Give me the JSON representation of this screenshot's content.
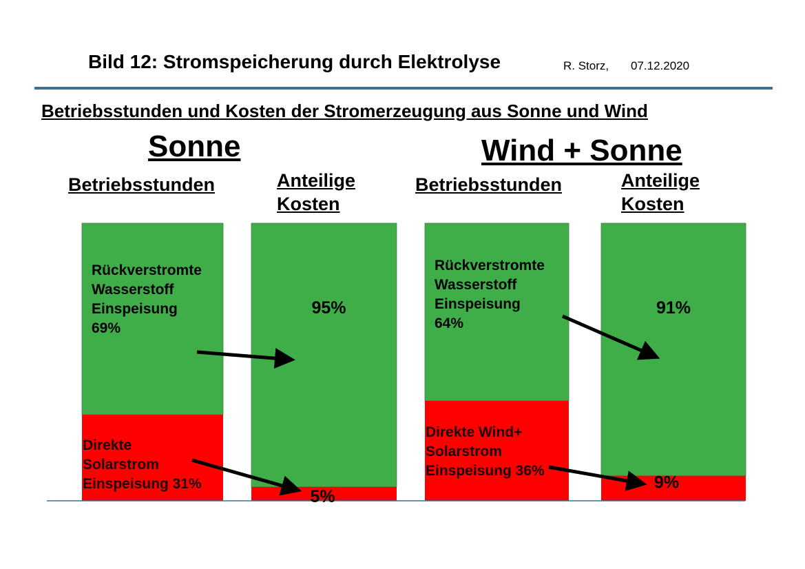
{
  "header": {
    "title": "Bild 12:  Stromspeicherung durch Elektrolyse",
    "author": "R. Storz,",
    "date": "07.12.2020"
  },
  "subtitle": "Betriebsstunden und Kosten der Stromerzeugung aus Sonne und Wind",
  "colors": {
    "green": "#3fae49",
    "red": "#ff0000",
    "rule": "#3a6f98",
    "arrow": "#000000"
  },
  "chart_data": {
    "type": "bar",
    "stacked": true,
    "normalized_percent": true,
    "groups": [
      {
        "title": "Sonne",
        "columns": [
          {
            "label": [
              "Betriebsstunden"
            ],
            "segments": [
              {
                "color": "green",
                "value": 69,
                "text": [
                  "Rückverstromte",
                  "Wasserstoff",
                  "Einspeisung",
                  "69%"
                ]
              },
              {
                "color": "red",
                "value": 31,
                "text": [
                  "Direkte",
                  "Solarstrom",
                  "Einspeisung 31%"
                ]
              }
            ]
          },
          {
            "label": [
              "Anteilige",
              "Kosten"
            ],
            "segments": [
              {
                "color": "green",
                "value": 95,
                "text": [
                  "95%"
                ]
              },
              {
                "color": "red",
                "value": 5,
                "text": [
                  "5%"
                ]
              }
            ]
          }
        ]
      },
      {
        "title": "Wind + Sonne",
        "columns": [
          {
            "label": [
              "Betriebsstunden"
            ],
            "segments": [
              {
                "color": "green",
                "value": 64,
                "text": [
                  "Rückverstromte",
                  "Wasserstoff",
                  "Einspeisung",
                  "64%"
                ]
              },
              {
                "color": "red",
                "value": 36,
                "text": [
                  "Direkte Wind+",
                  "Solarstrom",
                  "Einspeisung 36%"
                ]
              }
            ]
          },
          {
            "label": [
              "Anteilige",
              "Kosten"
            ],
            "segments": [
              {
                "color": "green",
                "value": 91,
                "text": [
                  "91%"
                ]
              },
              {
                "color": "red",
                "value": 9,
                "text": [
                  "9%"
                ]
              }
            ]
          }
        ]
      }
    ]
  }
}
